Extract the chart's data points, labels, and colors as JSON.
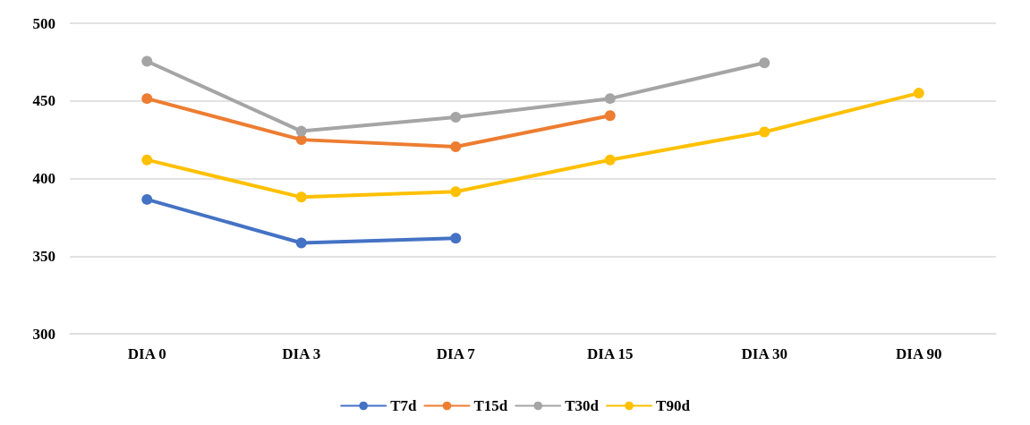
{
  "chart_data": {
    "type": "line",
    "categories": [
      "DIA 0",
      "DIA 3",
      "DIA 7",
      "DIA 15",
      "DIA 30",
      "DIA 90"
    ],
    "series": [
      {
        "name": "T7d",
        "color": "#4472c4",
        "values": [
          386.5,
          358.5,
          361.5,
          null,
          null,
          null
        ]
      },
      {
        "name": "T15d",
        "color": "#ed7d31",
        "values": [
          451.5,
          425,
          420.5,
          440.5,
          null,
          null
        ]
      },
      {
        "name": "T30d",
        "color": "#a5a5a5",
        "values": [
          475.5,
          430.5,
          439.5,
          451.5,
          474.5,
          null
        ]
      },
      {
        "name": "T90d",
        "color": "#ffc000",
        "values": [
          412,
          388,
          391.5,
          412,
          430,
          455
        ]
      }
    ],
    "ylim": [
      300,
      500
    ],
    "yticks": [
      300,
      350,
      400,
      450,
      500
    ],
    "grid": "y",
    "legend": "bottom",
    "marker": "circle",
    "line_style": "solid"
  }
}
